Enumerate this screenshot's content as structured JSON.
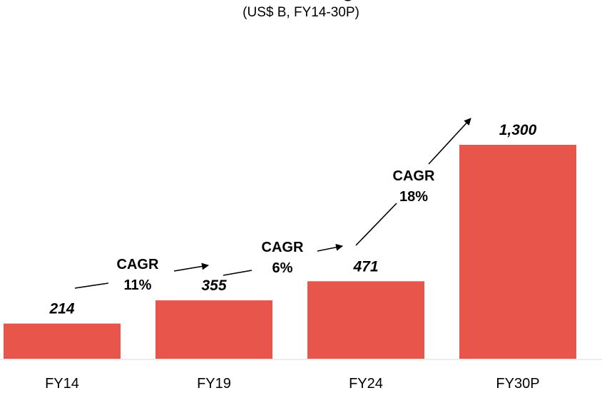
{
  "chart_data": {
    "type": "bar",
    "title_fragment": "g",
    "subtitle": "(US$ B, FY14-30P)",
    "categories": [
      "FY14",
      "FY19",
      "FY24",
      "FY30P"
    ],
    "values": [
      214,
      355,
      471,
      1300
    ],
    "value_labels": [
      "214",
      "355",
      "471",
      "1,300"
    ],
    "bar_color": "#e8554a",
    "annotations": [
      {
        "from": "FY14",
        "to": "FY19",
        "label_line1": "CAGR",
        "label_line2": "11%"
      },
      {
        "from": "FY19",
        "to": "FY24",
        "label_line1": "CAGR",
        "label_line2": "6%"
      },
      {
        "from": "FY24",
        "to": "FY30P",
        "label_line1": "CAGR",
        "label_line2": "18%"
      }
    ],
    "grid": false,
    "legend": "none"
  }
}
